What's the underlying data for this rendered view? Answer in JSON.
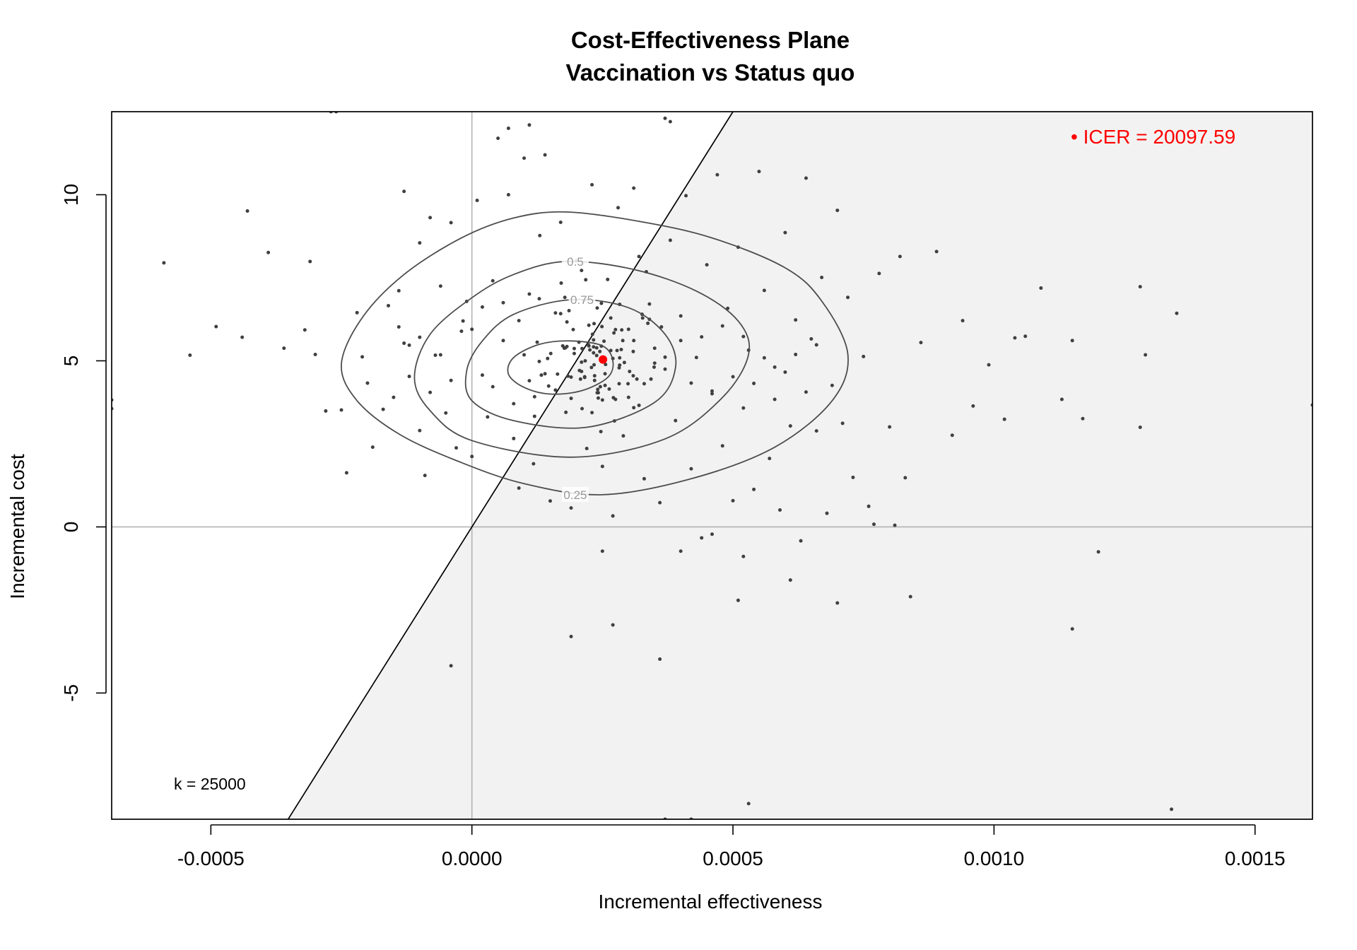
{
  "chart_data": {
    "type": "scatter",
    "title": "Cost-Effectiveness Plane",
    "subtitle": "Vaccination vs Status quo",
    "xlabel": "Incremental effectiveness",
    "ylabel": "Incremental cost",
    "xlim": [
      -0.00069,
      0.00161
    ],
    "ylim": [
      -8.8,
      12.5
    ],
    "x_ticks": [
      -0.0005,
      0.0,
      0.0005,
      0.001,
      0.0015
    ],
    "x_tick_labels": [
      "-0.0005",
      "0.0000",
      "0.0005",
      "0.0010",
      "0.0015"
    ],
    "y_ticks": [
      -5,
      0,
      5,
      10
    ],
    "y_tick_labels": [
      "-5",
      "0",
      "5",
      "10"
    ],
    "wtp": 25000,
    "wtp_label": "k = 25000",
    "icer_label": "• ICER = 20097.59",
    "icer_point": {
      "x": 0.000251,
      "y": 5.04
    },
    "contour_levels": [
      {
        "label": "0.25",
        "label_pos": [
          0.000198,
          0.97
        ]
      },
      {
        "label": "0.5",
        "label_pos": [
          0.000198,
          7.99
        ]
      },
      {
        "label": "0.75",
        "label_pos": [
          0.000211,
          6.84
        ]
      },
      {
        "label": "",
        "label_pos": null
      }
    ],
    "contours": [
      [
        [
          0.00018,
          9.48
        ],
        [
          0.00032,
          9.2
        ],
        [
          0.00046,
          8.7
        ],
        [
          0.0006,
          7.8
        ],
        [
          0.00067,
          6.8
        ],
        [
          0.00072,
          5.2
        ],
        [
          0.00069,
          3.8
        ],
        [
          0.00058,
          2.4
        ],
        [
          0.00042,
          1.45
        ],
        [
          0.00025,
          0.97
        ],
        [
          0.0001,
          1.3
        ],
        [
          -3e-05,
          2.0
        ],
        [
          -0.00014,
          2.8
        ],
        [
          -0.00022,
          3.8
        ],
        [
          -0.00025,
          4.9
        ],
        [
          -0.00021,
          6.3
        ],
        [
          -0.00013,
          7.6
        ],
        [
          -2e-05,
          8.7
        ],
        [
          8e-05,
          9.3
        ]
      ],
      [
        [
          0.00018,
          7.99
        ],
        [
          0.00031,
          7.75
        ],
        [
          0.00043,
          7.1
        ],
        [
          0.00051,
          6.2
        ],
        [
          0.00053,
          5.2
        ],
        [
          0.00048,
          3.9
        ],
        [
          0.00037,
          2.65
        ],
        [
          0.00019,
          2.1
        ],
        [
          0.0,
          2.6
        ],
        [
          -8e-05,
          3.5
        ],
        [
          -0.00011,
          4.5
        ],
        [
          -8e-05,
          5.8
        ],
        [
          0.0,
          6.9
        ],
        [
          8e-05,
          7.6
        ]
      ],
      [
        [
          0.00019,
          6.84
        ],
        [
          0.0003,
          6.6
        ],
        [
          0.00037,
          5.8
        ],
        [
          0.00039,
          4.8
        ],
        [
          0.00035,
          3.75
        ],
        [
          0.00022,
          3.0
        ],
        [
          8e-05,
          3.2
        ],
        [
          0.0,
          3.8
        ],
        [
          -1e-05,
          4.7
        ],
        [
          2e-05,
          5.6
        ],
        [
          8e-05,
          6.4
        ]
      ],
      [
        [
          0.00019,
          5.6
        ],
        [
          0.00025,
          5.45
        ],
        [
          0.00027,
          5.0
        ],
        [
          0.00026,
          4.5
        ],
        [
          0.00021,
          4.1
        ],
        [
          0.00015,
          4.0
        ],
        [
          0.0001,
          4.2
        ],
        [
          7e-05,
          4.6
        ],
        [
          8e-05,
          5.1
        ],
        [
          0.00013,
          5.5
        ]
      ]
    ],
    "points": [
      [
        0.000245,
        5.28
      ],
      [
        0.000256,
        4.89
      ],
      [
        0.00032,
        3.66
      ],
      [
        0.000226,
        5.33
      ],
      [
        0.000174,
        5.45
      ],
      [
        0.000218,
        7.44
      ],
      [
        0.000327,
        6.29
      ],
      [
        0.000334,
        7.68
      ],
      [
        0.000186,
        6.51
      ],
      [
        0.000129,
        4.98
      ],
      [
        0.000302,
        4.68
      ],
      [
        0.000316,
        4.45
      ],
      [
        0.000289,
        5.61
      ],
      [
        -1.7e-05,
        6.2
      ],
      [
        0.000247,
        2.87
      ],
      [
        0.000233,
        5.42
      ],
      [
        0.000177,
        5.38
      ],
      [
        0.000337,
        6.13
      ],
      [
        0.000273,
        3.19
      ],
      [
        0.000283,
        4.87
      ],
      [
        0.000151,
        5.22
      ],
      [
        0.000241,
        4.14
      ],
      [
        0.00034,
        6.25
      ],
      [
        0.000171,
        7.34
      ],
      [
        0.000363,
        6.02
      ],
      [
        0.000118,
        1.9
      ],
      [
        0.000249,
        6.03
      ],
      [
        0.000125,
        5.56
      ],
      [
        0.000349,
        4.81
      ],
      [
        0.000278,
        5.31
      ],
      [
        0.000287,
        5.93
      ],
      [
        0.000263,
        4.15
      ],
      [
        0.000234,
        6.12
      ],
      [
        0.000164,
        4.6
      ],
      [
        0.000326,
        6.4
      ],
      [
        0.000286,
        5.34
      ],
      [
        0.000178,
        6.91
      ],
      [
        0.000272,
        5.84
      ],
      [
        0.000235,
        4.55
      ],
      [
        0.000196,
        5.22
      ],
      [
        0.000266,
        5.31
      ],
      [
        0.000224,
        5.45
      ],
      [
        0.000309,
        4.55
      ],
      [
        0.000223,
        5.48
      ],
      [
        0.000283,
        6.7
      ],
      [
        0.000129,
        6.87
      ],
      [
        0.000233,
        5.24
      ],
      [
        0.000211,
        5.37
      ],
      [
        0.000147,
        4.24
      ],
      [
        0.000343,
        4.45
      ],
      [
        0.000283,
        5.09
      ],
      [
        0.00037,
        5.11
      ],
      [
        0.000266,
        6.29
      ],
      [
        0.000224,
        6.07
      ],
      [
        0.000309,
        5.28
      ],
      [
        0.000299,
        4.31
      ],
      [
        0.000255,
        4.26
      ],
      [
        0.000282,
        4.79
      ],
      [
        0.000275,
        3.84
      ],
      [
        0.000255,
        4.61
      ],
      [
        0.000208,
        4.45
      ],
      [
        0.000133,
        4.57
      ],
      [
        0.000217,
        5.0
      ],
      [
        0.000215,
        6.82
      ],
      [
        0.000248,
        5.44
      ],
      [
        0.000206,
        4.71
      ],
      [
        0.00019,
        4.51
      ],
      [
        0.000252,
        5.09
      ],
      [
        0.000216,
        4.52
      ],
      [
        0.000282,
        4.31
      ],
      [
        0.000233,
        5.63
      ],
      [
        0.00024,
        4.04
      ],
      [
        0.000271,
        3.89
      ],
      [
        0.000242,
        3.88
      ],
      [
        0.00021,
        4.96
      ],
      [
        0.000292,
        4.95
      ],
      [
        0.000182,
        5.43
      ],
      [
        0.000239,
        5.39
      ],
      [
        0.000253,
        5.59
      ],
      [
        0.000184,
        4.54
      ],
      [
        0.000211,
        3.56
      ],
      [
        0.000179,
        5.39
      ],
      [
        0.000231,
        5.8
      ],
      [
        0.00027,
        5.07
      ],
      [
        0.000234,
        4.88
      ],
      [
        0.000239,
        5.16
      ],
      [
        0.000275,
        5.94
      ],
      [
        0.000216,
        4.5
      ],
      [
        0.00031,
        3.59
      ],
      [
        0.000145,
        5.07
      ],
      [
        0.000196,
        5.37
      ],
      [
        0.00025,
        3.82
      ],
      [
        0.000246,
        4.22
      ],
      [
        0.000248,
        6.73
      ],
      [
        0.000229,
        4.8
      ],
      [
        0.000182,
        6.17
      ],
      [
        0.000205,
        5.56
      ],
      [
        0.000242,
        4.04
      ],
      [
        0.000235,
        4.41
      ],
      [
        0.000194,
        5.94
      ],
      [
        -0.00059,
        7.95
      ],
      [
        -0.00054,
        5.17
      ],
      [
        -0.00049,
        6.03
      ],
      [
        -0.00043,
        9.51
      ],
      [
        -0.00044,
        5.71
      ],
      [
        -0.00039,
        8.26
      ],
      [
        -0.00036,
        5.38
      ],
      [
        -0.00032,
        5.93
      ],
      [
        -0.00031,
        7.99
      ],
      [
        -0.0003,
        5.19
      ],
      [
        -0.00028,
        3.49
      ],
      [
        -0.00026,
        12.5
      ],
      [
        -0.00025,
        3.52
      ],
      [
        -0.00024,
        1.63
      ],
      [
        -0.00022,
        6.45
      ],
      [
        -0.0002,
        4.33
      ],
      [
        -0.00019,
        2.4
      ],
      [
        -0.00017,
        3.54
      ],
      [
        -0.00016,
        6.66
      ],
      [
        -0.00014,
        7.11
      ],
      [
        -0.00013,
        10.1
      ],
      [
        -0.00012,
        5.47
      ],
      [
        -0.0001,
        8.55
      ],
      [
        -0.0001,
        2.9
      ],
      [
        -9e-05,
        1.55
      ],
      [
        -8e-05,
        9.31
      ],
      [
        -7e-05,
        5.17
      ],
      [
        -6e-05,
        7.25
      ],
      [
        -5e-05,
        3.43
      ],
      [
        -4e-05,
        9.16
      ],
      [
        -3e-05,
        2.38
      ],
      [
        -2e-05,
        5.89
      ],
      [
        -1e-05,
        6.79
      ],
      [
        0.0,
        2.12
      ],
      [
        1e-05,
        9.83
      ],
      [
        2e-05,
        4.57
      ],
      [
        3e-05,
        3.31
      ],
      [
        4e-05,
        7.41
      ],
      [
        5e-05,
        11.7
      ],
      [
        6e-05,
        5.61
      ],
      [
        7e-05,
        10.0
      ],
      [
        8e-05,
        2.66
      ],
      [
        9e-05,
        1.17
      ],
      [
        0.0001,
        11.1
      ],
      [
        0.00011,
        7.01
      ],
      [
        0.00012,
        3.33
      ],
      [
        0.00013,
        8.77
      ],
      [
        0.00014,
        11.2
      ],
      [
        0.00015,
        0.78
      ],
      [
        0.00016,
        6.44
      ],
      [
        0.00017,
        9.17
      ],
      [
        0.00018,
        3.45
      ],
      [
        0.00019,
        0.57
      ],
      [
        0.0002,
        8.01
      ],
      [
        0.00021,
        4.68
      ],
      [
        0.00022,
        2.36
      ],
      [
        0.00023,
        10.3
      ],
      [
        0.00024,
        6.59
      ],
      [
        0.00025,
        1.82
      ],
      [
        0.00026,
        7.45
      ],
      [
        0.00027,
        0.33
      ],
      [
        0.00028,
        9.61
      ],
      [
        0.00029,
        2.74
      ],
      [
        0.0003,
        5.95
      ],
      [
        0.00031,
        10.2
      ],
      [
        0.00032,
        8.14
      ],
      [
        0.00033,
        1.45
      ],
      [
        0.00034,
        6.71
      ],
      [
        0.00035,
        4.93
      ],
      [
        0.00036,
        0.73
      ],
      [
        0.00037,
        12.3
      ],
      [
        0.00038,
        8.63
      ],
      [
        0.00039,
        3.2
      ],
      [
        0.0004,
        6.35
      ],
      [
        0.00041,
        9.97
      ],
      [
        0.00042,
        1.75
      ],
      [
        0.00043,
        5.1
      ],
      [
        0.00044,
        -0.33
      ],
      [
        0.00045,
        7.89
      ],
      [
        0.00046,
        4.09
      ],
      [
        0.00047,
        10.6
      ],
      [
        0.00048,
        2.44
      ],
      [
        0.00049,
        6.58
      ],
      [
        0.0005,
        0.79
      ],
      [
        0.00051,
        8.42
      ],
      [
        0.00052,
        3.58
      ],
      [
        0.00053,
        5.32
      ],
      [
        0.00054,
        1.13
      ],
      [
        0.00055,
        10.7
      ],
      [
        0.00056,
        7.12
      ],
      [
        0.00057,
        2.06
      ],
      [
        0.00058,
        4.81
      ],
      [
        0.00059,
        0.51
      ],
      [
        0.0006,
        8.86
      ],
      [
        0.00061,
        3.04
      ],
      [
        0.00062,
        6.23
      ],
      [
        0.00063,
        -0.42
      ],
      [
        0.00064,
        10.5
      ],
      [
        0.00065,
        5.66
      ],
      [
        0.00066,
        2.89
      ],
      [
        0.00067,
        7.51
      ],
      [
        0.00068,
        0.41
      ],
      [
        0.00069,
        4.26
      ],
      [
        0.0007,
        9.53
      ],
      [
        0.00071,
        3.12
      ],
      [
        0.00072,
        6.91
      ],
      [
        0.00073,
        1.49
      ],
      [
        0.00075,
        5.13
      ],
      [
        0.00076,
        0.62
      ],
      [
        0.00078,
        7.63
      ],
      [
        0.0008,
        3.01
      ],
      [
        0.00082,
        8.14
      ],
      [
        0.00083,
        1.48
      ],
      [
        0.00086,
        5.55
      ],
      [
        0.00089,
        8.29
      ],
      [
        0.00092,
        2.76
      ],
      [
        0.00094,
        6.21
      ],
      [
        0.00096,
        3.64
      ],
      [
        0.00099,
        4.88
      ],
      [
        0.00102,
        3.24
      ],
      [
        0.00104,
        5.69
      ],
      [
        0.00106,
        5.74
      ],
      [
        0.00109,
        7.19
      ],
      [
        0.00113,
        3.84
      ],
      [
        0.00115,
        5.61
      ],
      [
        0.00117,
        3.26
      ],
      [
        0.00128,
        7.23
      ],
      [
        0.00128,
        3.0
      ],
      [
        0.00129,
        5.18
      ],
      [
        0.00135,
        6.43
      ],
      [
        0.0012,
        -0.75
      ],
      [
        0.00115,
        -3.07
      ],
      [
        0.00084,
        -2.1
      ],
      [
        0.00077,
        0.08
      ],
      [
        0.00081,
        0.05
      ],
      [
        0.00061,
        -1.6
      ],
      [
        0.0007,
        -2.29
      ],
      [
        0.00051,
        -2.21
      ],
      [
        0.00052,
        -0.89
      ],
      [
        0.00036,
        -3.98
      ],
      [
        0.00027,
        -2.95
      ],
      [
        0.00019,
        -3.3
      ],
      [
        -4e-05,
        -4.18
      ],
      [
        0.00025,
        -0.73
      ],
      [
        0.0004,
        -0.73
      ],
      [
        0.00046,
        -0.22
      ],
      [
        0.00053,
        -8.33
      ],
      [
        0.00037,
        -8.8
      ],
      [
        0.00042,
        -8.8
      ],
      [
        0.00134,
        -8.5
      ],
      [
        0.00161,
        3.67
      ],
      [
        -0.00069,
        3.56
      ],
      [
        -0.00069,
        3.82
      ],
      [
        0.00038,
        12.2
      ],
      [
        7e-05,
        12.0
      ],
      [
        0.00011,
        12.1
      ],
      [
        -0.00027,
        12.5
      ],
      [
        -0.00015,
        3.9
      ],
      [
        -0.00021,
        5.12
      ],
      [
        -0.00013,
        5.53
      ],
      [
        0.00012,
        3.92
      ],
      [
        0.00014,
        4.61
      ],
      [
        0.00016,
        4.12
      ],
      [
        0.0001,
        5.18
      ],
      [
        0.00011,
        4.4
      ],
      [
        0.0003,
        3.9
      ],
      [
        0.00033,
        4.31
      ],
      [
        0.00031,
        5.61
      ],
      [
        0.00035,
        5.38
      ],
      [
        0.00037,
        4.75
      ],
      [
        0.0004,
        5.61
      ],
      [
        0.00042,
        4.33
      ],
      [
        0.00044,
        5.72
      ],
      [
        0.00046,
        4.01
      ],
      [
        0.00048,
        6.05
      ],
      [
        0.0005,
        4.52
      ],
      [
        0.00052,
        5.73
      ],
      [
        0.00054,
        4.32
      ],
      [
        0.00056,
        5.09
      ],
      [
        0.00058,
        3.84
      ],
      [
        0.0006,
        4.66
      ],
      [
        0.00062,
        5.19
      ],
      [
        0.00064,
        4.06
      ],
      [
        0.00066,
        5.48
      ],
      [
        -4e-05,
        4.41
      ],
      [
        -6e-05,
        5.18
      ],
      [
        -8e-05,
        4.05
      ],
      [
        -0.0001,
        5.71
      ],
      [
        -0.00012,
        4.53
      ],
      [
        -0.00014,
        6.02
      ],
      [
        0.0,
        5.95
      ],
      [
        2e-05,
        6.62
      ],
      [
        4e-05,
        4.22
      ],
      [
        6e-05,
        6.75
      ],
      [
        8e-05,
        3.71
      ],
      [
        9e-05,
        6.21
      ],
      [
        0.00017,
        6.42
      ],
      [
        0.00019,
        3.87
      ],
      [
        0.00021,
        7.72
      ],
      [
        0.00023,
        3.44
      ]
    ]
  }
}
